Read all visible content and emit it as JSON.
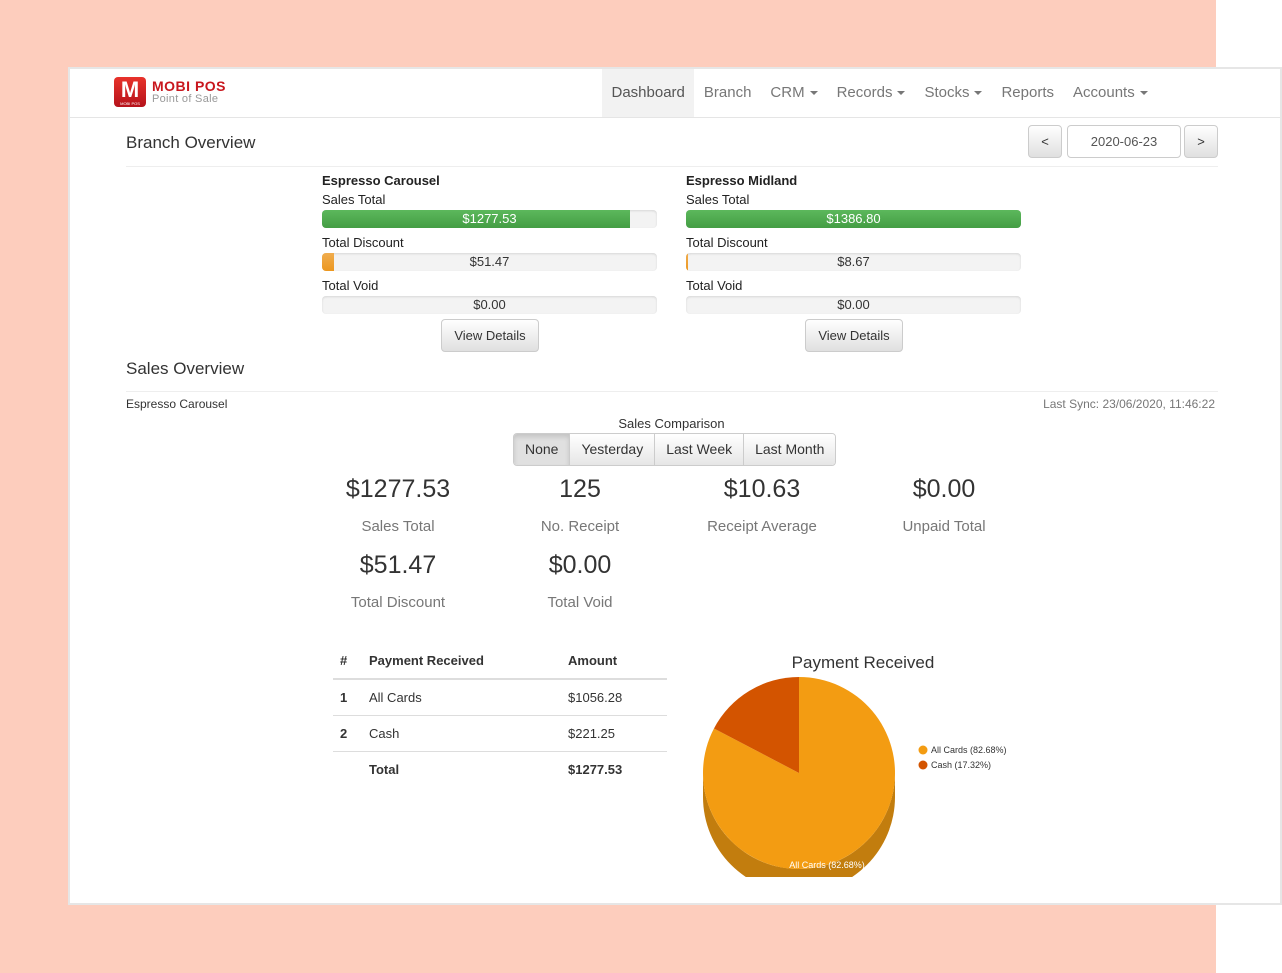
{
  "app": {
    "logo_badge": "M",
    "logo_badge_small": "MOBI POS",
    "title": "MOBI POS",
    "subtitle": "Point of Sale"
  },
  "nav": {
    "items": [
      "Dashboard",
      "Branch",
      "CRM",
      "Records",
      "Stocks",
      "Reports",
      "Accounts"
    ],
    "active": "Dashboard"
  },
  "branch_overview": {
    "title": "Branch Overview",
    "date": "2020-06-23",
    "prev_label": "<",
    "next_label": ">",
    "branches": [
      {
        "name": "Espresso Carousel",
        "sales_total_label": "Sales Total",
        "sales_total": "$1277.53",
        "sales_fill": 0.92,
        "discount_label": "Total Discount",
        "discount": "$51.47",
        "discount_fill": 0.037,
        "void_label": "Total Void",
        "void": "$0.00",
        "void_fill": 0,
        "details_label": "View Details"
      },
      {
        "name": "Espresso Midland",
        "sales_total_label": "Sales Total",
        "sales_total": "$1386.80",
        "sales_fill": 1.0,
        "discount_label": "Total Discount",
        "discount": "$8.67",
        "discount_fill": 0.006,
        "void_label": "Total Void",
        "void": "$0.00",
        "void_fill": 0,
        "details_label": "View Details"
      }
    ]
  },
  "sales_overview": {
    "title": "Sales Overview",
    "branch_name": "Espresso Carousel",
    "last_sync": "Last Sync: 23/06/2020, 11:46:22",
    "comparison_label": "Sales Comparison",
    "comparison_options": [
      "None",
      "Yesterday",
      "Last Week",
      "Last Month"
    ],
    "comparison_active": "None",
    "stats": {
      "sales_total": {
        "value": "$1277.53",
        "label": "Sales Total"
      },
      "receipts": {
        "value": "125",
        "label": "No. Receipt"
      },
      "receipt_avg": {
        "value": "$10.63",
        "label": "Receipt Average"
      },
      "unpaid": {
        "value": "$0.00",
        "label": "Unpaid Total"
      },
      "discount": {
        "value": "$51.47",
        "label": "Total Discount"
      },
      "void": {
        "value": "$0.00",
        "label": "Total Void"
      }
    },
    "payment_table": {
      "headers": [
        "#",
        "Payment Received",
        "Amount"
      ],
      "rows": [
        {
          "num": "1",
          "method": "All Cards",
          "amount": "$1056.28"
        },
        {
          "num": "2",
          "method": "Cash",
          "amount": "$221.25"
        }
      ],
      "total_label": "Total",
      "total_amount": "$1277.53"
    }
  },
  "colors": {
    "green": "#5cb85c",
    "orange": "#f0ad4e",
    "cards": "#f39c12",
    "cash": "#d35400",
    "brand_red": "#c8161d"
  },
  "chart_data": {
    "type": "pie",
    "title": "Payment Received",
    "labels": [
      "All Cards (82.68%)",
      "Cash (17.32%)"
    ],
    "values": [
      82.68,
      17.32
    ],
    "colors": [
      "#f39c12",
      "#d35400"
    ],
    "legend_position": "top-right",
    "slice_label": "All Cards (82.68%)"
  }
}
